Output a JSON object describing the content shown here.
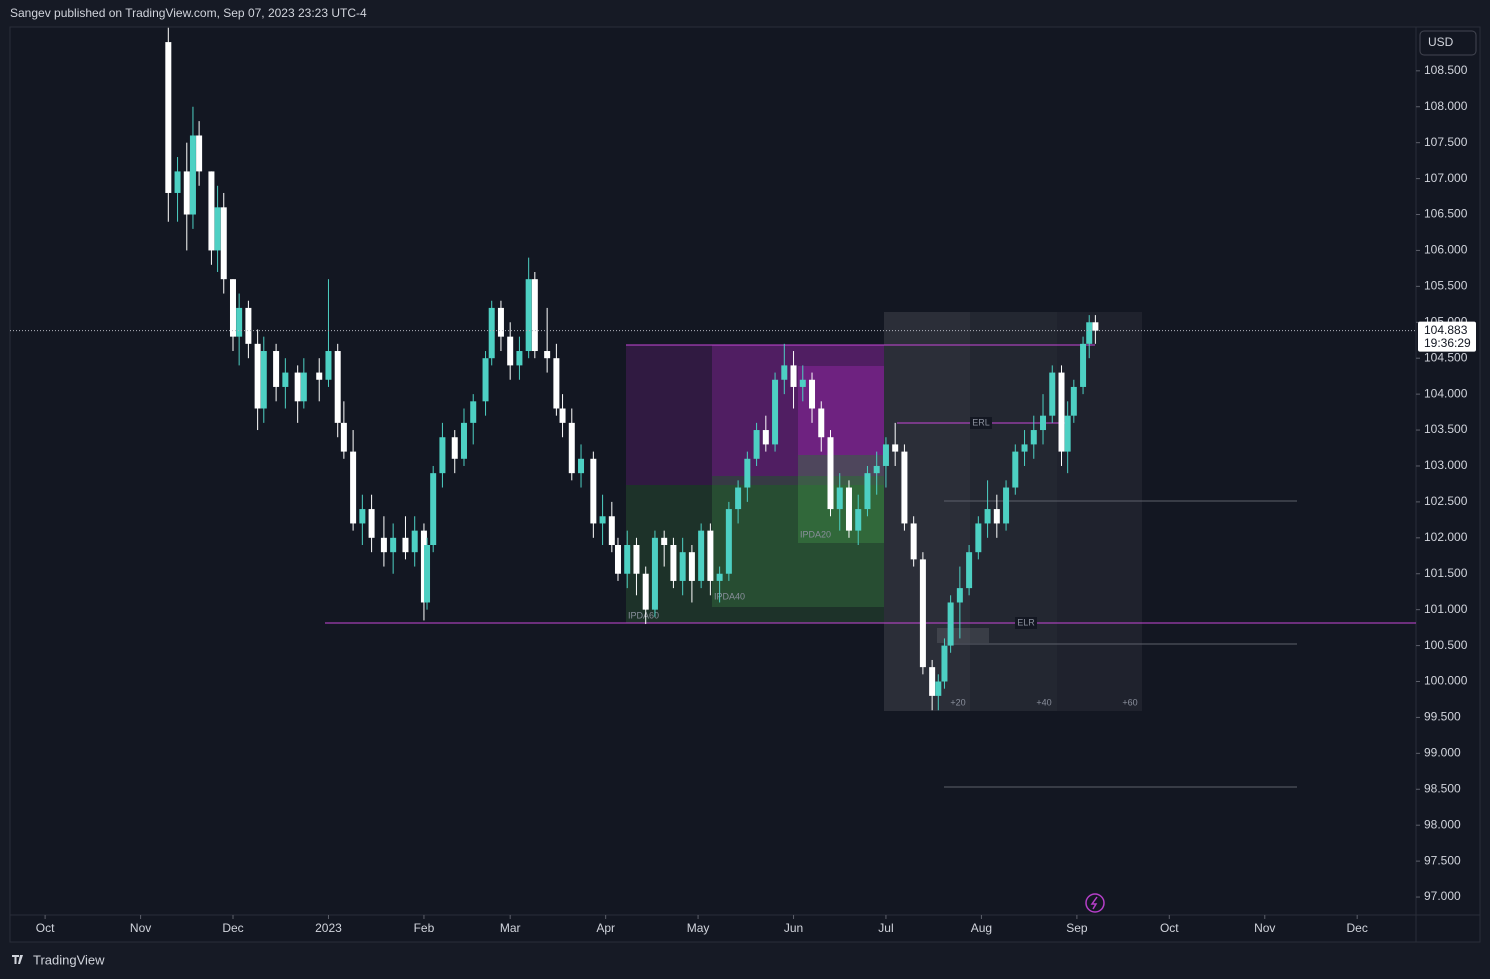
{
  "header": {
    "published": "Sangev published on TradingView.com, Sep 07, 2023 23:23 UTC-4"
  },
  "chart_data": {
    "type": "candlestick",
    "currency": "USD",
    "up_color": "#4dd0c3",
    "down_color": "#ffffff",
    "last_price_time": "19:36:29",
    "xlim": [
      -11.4,
      445.1
    ],
    "xticks": [
      {
        "value": 0,
        "label": "Oct"
      },
      {
        "value": 31,
        "label": "Nov"
      },
      {
        "value": 61,
        "label": "Dec"
      },
      {
        "value": 92,
        "label": "2023"
      },
      {
        "value": 123,
        "label": "Feb"
      },
      {
        "value": 151,
        "label": "Mar"
      },
      {
        "value": 182,
        "label": "Apr"
      },
      {
        "value": 212,
        "label": "May"
      },
      {
        "value": 243,
        "label": "Jun"
      },
      {
        "value": 273,
        "label": "Jul"
      },
      {
        "value": 304,
        "label": "Aug"
      },
      {
        "value": 335,
        "label": "Sep"
      },
      {
        "value": 365,
        "label": "Oct"
      },
      {
        "value": 396,
        "label": "Nov"
      },
      {
        "value": 426,
        "label": "Dec"
      }
    ],
    "ylim": [
      96.75,
      109.11
    ],
    "yticks": [
      {
        "value": 97,
        "label": "97.000"
      },
      {
        "value": 97.5,
        "label": "97.500"
      },
      {
        "value": 98,
        "label": "98.000"
      },
      {
        "value": 98.5,
        "label": "98.500"
      },
      {
        "value": 99,
        "label": "99.000"
      },
      {
        "value": 99.5,
        "label": "99.500"
      },
      {
        "value": 100,
        "label": "100.000"
      },
      {
        "value": 100.5,
        "label": "100.500"
      },
      {
        "value": 101,
        "label": "101.000"
      },
      {
        "value": 101.5,
        "label": "101.500"
      },
      {
        "value": 102,
        "label": "102.000"
      },
      {
        "value": 102.5,
        "label": "102.500"
      },
      {
        "value": 103,
        "label": "103.000"
      },
      {
        "value": 103.5,
        "label": "103.500"
      },
      {
        "value": 104,
        "label": "104.000"
      },
      {
        "value": 104.5,
        "label": "104.500"
      },
      {
        "value": 105,
        "label": "105.000"
      },
      {
        "value": 105.5,
        "label": "105.500"
      },
      {
        "value": 106,
        "label": "106.000"
      },
      {
        "value": 106.5,
        "label": "106.500"
      },
      {
        "value": 107,
        "label": "107.000"
      },
      {
        "value": 107.5,
        "label": "107.500"
      },
      {
        "value": 108,
        "label": "108.000"
      },
      {
        "value": 108.5,
        "label": "108.500"
      }
    ],
    "x": [
      40,
      43,
      46,
      48,
      50,
      54,
      56,
      58,
      61,
      63,
      66,
      69,
      71,
      75,
      78,
      82,
      84,
      89,
      92,
      95,
      97,
      100,
      103,
      106,
      110,
      113,
      117,
      120,
      123,
      124,
      126,
      129,
      133,
      136,
      139,
      143,
      145,
      148,
      151,
      154,
      157,
      159,
      163,
      166,
      168,
      171,
      174,
      178,
      181,
      184,
      186,
      189,
      192,
      195,
      198,
      201,
      204,
      207,
      210,
      213,
      216,
      219,
      222,
      225,
      228,
      231,
      234,
      237,
      240,
      243,
      246,
      249,
      252,
      255,
      258,
      261,
      264,
      267,
      270,
      273,
      276,
      279,
      282,
      285,
      288,
      290,
      292,
      294,
      297,
      300,
      303,
      306,
      309,
      312,
      315,
      318,
      321,
      324,
      327,
      330,
      332,
      334,
      337,
      339,
      341
    ],
    "open": [
      108.9,
      106.8,
      107.1,
      106.5,
      107.6,
      107.1,
      106.0,
      106.6,
      105.6,
      104.8,
      105.2,
      104.7,
      103.8,
      104.6,
      104.1,
      104.3,
      103.9,
      104.3,
      104.2,
      104.6,
      103.6,
      103.2,
      102.2,
      102.4,
      102.0,
      101.8,
      102.0,
      101.8,
      102.1,
      101.1,
      101.9,
      102.9,
      103.4,
      103.1,
      103.6,
      103.9,
      104.5,
      105.2,
      104.8,
      104.4,
      104.6,
      105.6,
      104.6,
      104.5,
      103.8,
      103.6,
      102.9,
      103.1,
      102.2,
      102.3,
      101.9,
      101.5,
      101.9,
      101.5,
      101.0,
      102.0,
      101.9,
      101.4,
      101.8,
      101.4,
      102.1,
      101.4,
      101.5,
      102.4,
      102.7,
      103.1,
      103.5,
      103.3,
      104.2,
      104.4,
      104.1,
      104.2,
      103.8,
      103.4,
      102.4,
      102.7,
      102.1,
      102.4,
      102.9,
      103.0,
      103.3,
      103.2,
      102.2,
      101.7,
      100.2,
      99.8,
      100.0,
      100.5,
      101.1,
      101.3,
      101.8,
      102.2,
      102.4,
      102.2,
      102.7,
      103.2,
      103.3,
      103.5,
      103.7,
      104.3,
      103.2,
      103.7,
      104.1,
      104.7,
      105.0
    ],
    "high": [
      109.1,
      107.3,
      107.5,
      108.0,
      107.8,
      107.1,
      106.9,
      106.8,
      105.6,
      105.4,
      105.3,
      104.9,
      104.8,
      104.7,
      104.5,
      104.4,
      104.5,
      104.5,
      105.6,
      104.7,
      103.9,
      103.5,
      102.6,
      102.6,
      102.3,
      102.2,
      102.3,
      102.3,
      102.2,
      102.0,
      103.0,
      103.6,
      103.5,
      103.8,
      104.0,
      104.6,
      105.3,
      105.3,
      105.0,
      104.8,
      105.9,
      105.7,
      105.2,
      104.7,
      104.0,
      103.8,
      103.3,
      103.2,
      102.6,
      102.5,
      102.0,
      102.1,
      102.0,
      101.6,
      102.1,
      102.1,
      102.0,
      102.0,
      101.9,
      102.2,
      102.2,
      101.6,
      102.5,
      102.8,
      103.2,
      103.6,
      103.7,
      104.3,
      104.7,
      104.6,
      104.4,
      104.3,
      103.9,
      103.5,
      102.9,
      102.8,
      102.6,
      103.0,
      103.2,
      103.4,
      103.6,
      103.3,
      102.3,
      101.8,
      100.3,
      100.1,
      100.6,
      101.2,
      101.6,
      101.9,
      102.3,
      102.8,
      102.6,
      102.8,
      103.3,
      103.5,
      103.7,
      104.0,
      104.4,
      104.4,
      103.9,
      104.2,
      104.8,
      105.1,
      105.1
    ],
    "low": [
      106.4,
      106.4,
      106.0,
      106.3,
      106.9,
      105.8,
      105.7,
      105.4,
      104.6,
      104.4,
      104.5,
      103.5,
      103.6,
      103.9,
      103.8,
      103.6,
      103.8,
      103.9,
      104.1,
      103.4,
      103.1,
      102.1,
      101.9,
      101.8,
      101.6,
      101.5,
      101.7,
      101.6,
      100.85,
      101.0,
      101.8,
      102.7,
      102.9,
      103.0,
      103.3,
      103.7,
      104.4,
      104.6,
      104.2,
      104.2,
      104.5,
      104.5,
      104.3,
      103.7,
      103.4,
      102.8,
      102.7,
      102.0,
      101.9,
      101.8,
      101.4,
      101.3,
      101.2,
      100.8,
      100.9,
      101.6,
      101.3,
      101.2,
      101.1,
      101.3,
      101.2,
      101.1,
      101.4,
      102.2,
      102.5,
      103.0,
      103.2,
      103.2,
      104.0,
      103.8,
      103.9,
      103.6,
      103.2,
      102.3,
      102.1,
      102.0,
      101.9,
      102.3,
      102.6,
      102.7,
      103.0,
      102.1,
      101.6,
      100.1,
      99.6,
      99.6,
      99.9,
      100.4,
      100.6,
      101.2,
      101.7,
      102.0,
      102.0,
      102.1,
      102.6,
      103.0,
      103.1,
      103.3,
      103.6,
      103.0,
      102.9,
      103.6,
      104.0,
      104.5,
      104.7
    ],
    "close": [
      106.8,
      107.1,
      106.5,
      107.6,
      107.1,
      106.0,
      106.6,
      105.6,
      104.8,
      105.2,
      104.7,
      103.8,
      104.6,
      104.1,
      104.3,
      103.9,
      104.3,
      104.2,
      104.6,
      103.6,
      103.2,
      102.2,
      102.4,
      102.0,
      101.8,
      102.0,
      101.8,
      102.1,
      101.1,
      101.9,
      102.9,
      103.4,
      103.1,
      103.6,
      103.9,
      104.5,
      105.2,
      104.8,
      104.4,
      104.6,
      105.6,
      104.6,
      104.5,
      103.8,
      103.6,
      102.9,
      103.1,
      102.2,
      102.3,
      101.9,
      101.5,
      101.9,
      101.5,
      101.0,
      102.0,
      101.9,
      101.4,
      101.8,
      101.4,
      102.1,
      101.4,
      101.5,
      102.4,
      102.7,
      103.1,
      103.5,
      103.3,
      104.2,
      104.4,
      104.1,
      104.2,
      103.8,
      103.4,
      102.4,
      102.7,
      102.1,
      102.4,
      102.9,
      103.0,
      103.3,
      103.2,
      102.2,
      101.7,
      100.2,
      99.8,
      100.0,
      100.5,
      101.1,
      101.3,
      101.8,
      102.2,
      102.4,
      102.2,
      102.7,
      103.2,
      103.3,
      103.5,
      103.7,
      104.3,
      103.2,
      103.7,
      104.1,
      104.7,
      105.0,
      104.883
    ],
    "annotations": [
      "IPDA60",
      "IPDA40",
      "IPDA20",
      "ERL",
      "ELR",
      "+20",
      "+40",
      "+60"
    ]
  },
  "footer": {
    "brand": "TradingView"
  }
}
